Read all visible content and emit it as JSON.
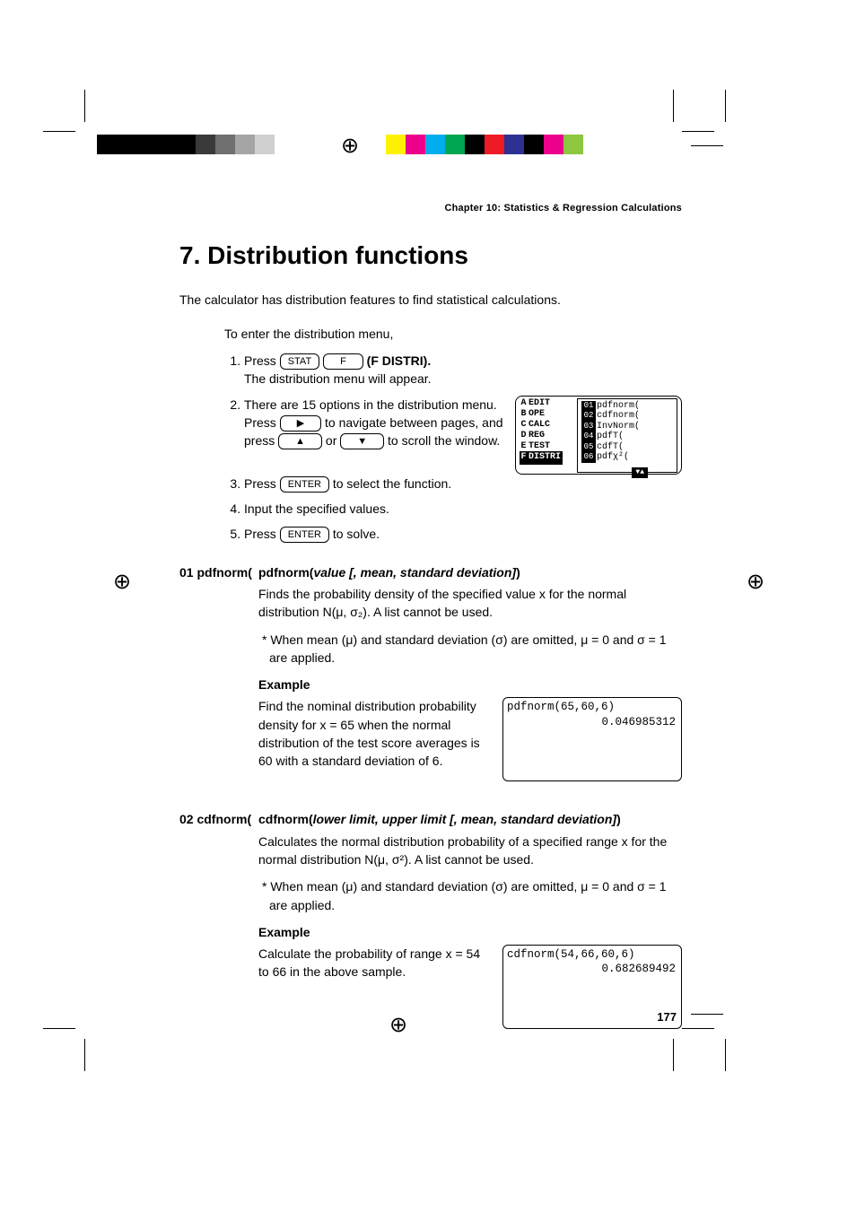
{
  "page_number": "177",
  "chapter_header": "Chapter 10: Statistics & Regression Calculations",
  "section_title": "7. Distribution functions",
  "intro": "The calculator has distribution features to find statistical calculations.",
  "steps_lead": "To enter the distribution menu,",
  "steps": {
    "s1_a": "Press ",
    "s1_key1": "STAT",
    "s1_key2": "F",
    "s1_b": " (F DISTRI).",
    "s1_c": "The distribution menu will appear.",
    "s2_a": "There are 15 options in the distribution menu. Press ",
    "s2_key1": "▶",
    "s2_b": " to navigate between pages, and press ",
    "s2_key2": "▲",
    "s2_c": " or ",
    "s2_key3": "▼",
    "s2_d": " to scroll the window.",
    "s3_a": "Press ",
    "s3_key": "ENTER",
    "s3_b": " to select the function.",
    "s4": "Input the specified values.",
    "s5_a": "Press ",
    "s5_key": "ENTER",
    "s5_b": " to solve."
  },
  "screen_menu": {
    "left": [
      {
        "k": "A",
        "t": "EDIT",
        "inv": false
      },
      {
        "k": "B",
        "t": "OPE",
        "inv": false
      },
      {
        "k": "C",
        "t": "CALC",
        "inv": false
      },
      {
        "k": "D",
        "t": "REG",
        "inv": false
      },
      {
        "k": "E",
        "t": "TEST",
        "inv": false
      },
      {
        "k": "F",
        "t": "DISTRI",
        "inv": true
      }
    ],
    "right": [
      {
        "n": "01",
        "t": "pdfnorm("
      },
      {
        "n": "02",
        "t": "cdfnorm("
      },
      {
        "n": "03",
        "t": "InvNorm("
      },
      {
        "n": "04",
        "t": "pdfT("
      },
      {
        "n": "05",
        "t": "cdfT("
      },
      {
        "n": "06",
        "t": "pdfχ²("
      }
    ]
  },
  "func1": {
    "label": "01 pdfnorm(",
    "sig_a": "pdfnorm(",
    "sig_args": "value [, mean, standard deviation]",
    "sig_b": ")",
    "desc": "Finds the probability density of the specified value x for the normal distribution N(μ, σ₂). A list cannot be used.",
    "note": "* When mean (μ) and standard deviation (σ) are omitted, μ = 0 and σ = 1 are applied.",
    "example_h": "Example",
    "example_text": "Find the nominal distribution probability density for x = 65 when the normal distribution of the test score averages is 60 with a standard deviation of 6.",
    "screen_line1": "pdfnorm(65,60,6)",
    "screen_result": "0.046985312"
  },
  "func2": {
    "label": "02 cdfnorm(",
    "sig_a": "cdfnorm(",
    "sig_args": "lower limit, upper limit [, mean, standard deviation]",
    "sig_b": ")",
    "desc": "Calculates the normal distribution probability of a specified range x for the normal distribution N(μ, σ²). A list cannot be used.",
    "note": "* When mean (μ) and standard deviation (σ) are omitted, μ = 0 and σ = 1 are applied.",
    "example_h": "Example",
    "example_text": "Calculate the probability of range x = 54 to 66 in the above sample.",
    "screen_line1": "cdfnorm(54,66,60,6)",
    "screen_result": "0.682689492"
  },
  "colorbar_left": [
    "#000000",
    "#000000",
    "#000000",
    "#000000",
    "#000000",
    "#3a3a3a",
    "#6f6f6f",
    "#a5a5a5",
    "#d0d0d0",
    "#ffffff"
  ],
  "colorbar_right": [
    "#fff200",
    "#ec008c",
    "#00aeef",
    "#00a651",
    "#000000",
    "#ed1c24",
    "#2e3192",
    "#000000",
    "#ec008c",
    "#8dc63f"
  ],
  "crop_color": "#000000"
}
